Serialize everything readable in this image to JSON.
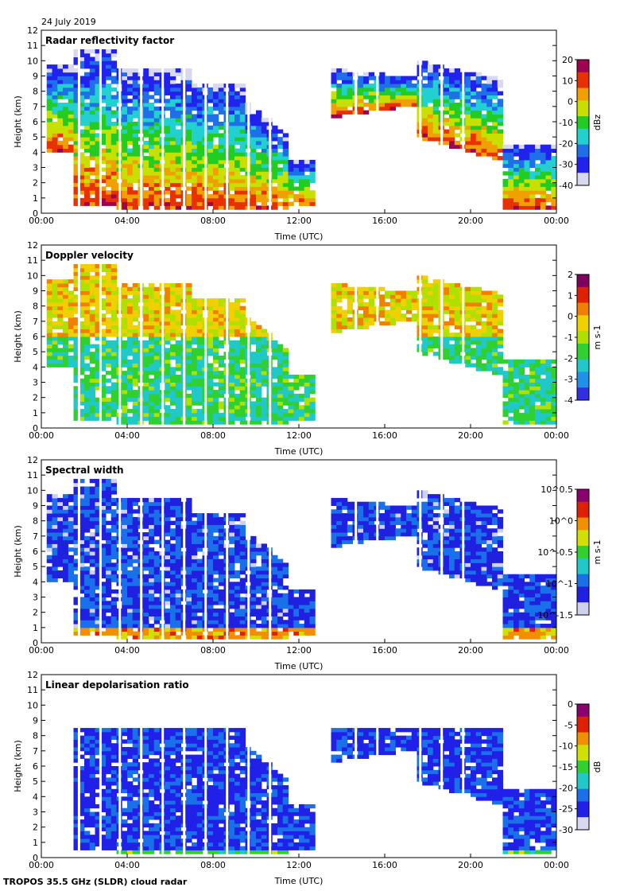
{
  "header": {
    "date": "24 July 2019"
  },
  "footer": {
    "caption": "TROPOS 35.5 GHz (SLDR) cloud radar"
  },
  "chart_data": [
    {
      "type": "heatmap",
      "title": "Radar reflectivity factor",
      "xlabel": "Time (UTC)",
      "ylabel": "Height (km)",
      "x_ticks": [
        "00:00",
        "04:00",
        "08:00",
        "12:00",
        "16:00",
        "20:00",
        "00:00"
      ],
      "y_ticks": [
        0,
        1,
        2,
        3,
        4,
        5,
        6,
        7,
        8,
        9,
        10,
        11,
        12
      ],
      "ylim": [
        0,
        12
      ],
      "colorbar": {
        "label": "dBz",
        "ticks": [
          "20",
          "10",
          "0",
          "-10",
          "-20",
          "-30",
          "-40"
        ],
        "range": [
          -40,
          20
        ]
      }
    },
    {
      "type": "heatmap",
      "title": "Doppler velocity",
      "xlabel": "Time (UTC)",
      "ylabel": "Height (km)",
      "x_ticks": [
        "00:00",
        "04:00",
        "08:00",
        "12:00",
        "16:00",
        "20:00",
        "00:00"
      ],
      "y_ticks": [
        0,
        1,
        2,
        3,
        4,
        5,
        6,
        7,
        8,
        9,
        10,
        11,
        12
      ],
      "ylim": [
        0,
        12
      ],
      "colorbar": {
        "label": "m s-1",
        "ticks": [
          "2",
          "1",
          "0",
          "-1",
          "-2",
          "-3",
          "-4"
        ],
        "range": [
          -4,
          2
        ]
      }
    },
    {
      "type": "heatmap",
      "title": "Spectral width",
      "xlabel": "Time (UTC)",
      "ylabel": "Height (km)",
      "x_ticks": [
        "00:00",
        "04:00",
        "08:00",
        "12:00",
        "16:00",
        "20:00",
        "00:00"
      ],
      "y_ticks": [
        0,
        1,
        2,
        3,
        4,
        5,
        6,
        7,
        8,
        9,
        10,
        11,
        12
      ],
      "ylim": [
        0,
        12
      ],
      "colorbar": {
        "label": "m s-1",
        "ticks": [
          "10^0.5",
          "10^0",
          "10^-0.5",
          "10^-1",
          "10^-1.5"
        ],
        "range": [
          -1.5,
          0.5
        ]
      }
    },
    {
      "type": "heatmap",
      "title": "Linear depolarisation ratio",
      "xlabel": "Time (UTC)",
      "ylabel": "Height (km)",
      "x_ticks": [
        "00:00",
        "04:00",
        "08:00",
        "12:00",
        "16:00",
        "20:00",
        "00:00"
      ],
      "y_ticks": [
        0,
        1,
        2,
        3,
        4,
        5,
        6,
        7,
        8,
        9,
        10,
        11,
        12
      ],
      "ylim": [
        0,
        12
      ],
      "colorbar": {
        "label": "dB",
        "ticks": [
          "0",
          "-5",
          "-10",
          "-15",
          "-20",
          "-25",
          "-30"
        ],
        "range": [
          -30,
          0
        ]
      }
    }
  ]
}
